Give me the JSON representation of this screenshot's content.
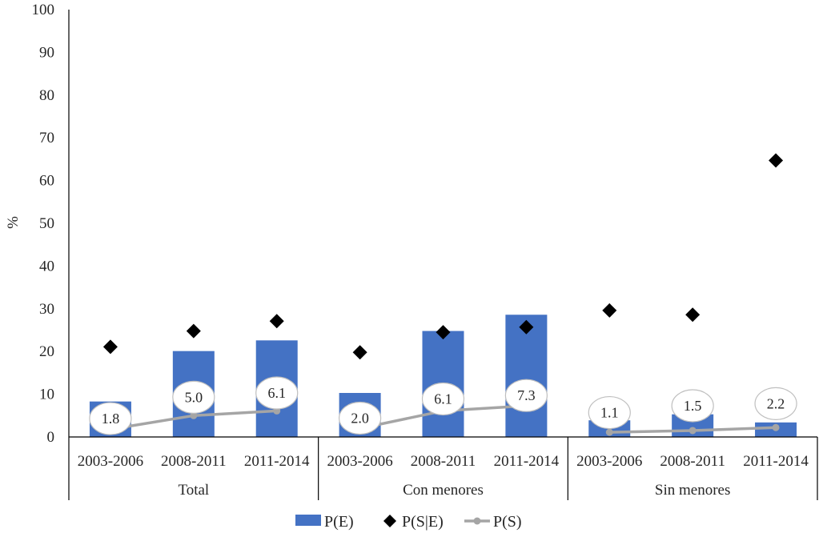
{
  "chart_data": {
    "type": "bar",
    "ylabel": "%",
    "ylim": [
      0,
      100
    ],
    "yticks": [
      0,
      10,
      20,
      30,
      40,
      50,
      60,
      70,
      80,
      90,
      100
    ],
    "groups": [
      {
        "name": "Total",
        "categories": [
          "2003-2006",
          "2008-2011",
          "2011-2014"
        ]
      },
      {
        "name": "Con menores",
        "categories": [
          "2003-2006",
          "2008-2011",
          "2011-2014"
        ]
      },
      {
        "name": "Sin menores",
        "categories": [
          "2003-2006",
          "2008-2011",
          "2011-2014"
        ]
      }
    ],
    "series": [
      {
        "name": "P(E)",
        "kind": "bar",
        "color": "#4472c4",
        "values": [
          8.3,
          20.1,
          22.6,
          10.3,
          24.8,
          28.6,
          3.9,
          5.3,
          3.4
        ]
      },
      {
        "name": "P(S|E)",
        "kind": "marker",
        "marker": "diamond",
        "color": "#000000",
        "values": [
          21.1,
          24.8,
          27.1,
          19.8,
          24.5,
          25.7,
          29.6,
          28.6,
          64.7
        ]
      },
      {
        "name": "P(S)",
        "kind": "line",
        "color": "#a5a5a5",
        "values": [
          1.8,
          5.0,
          6.1,
          2.0,
          6.1,
          7.3,
          1.1,
          1.5,
          2.2
        ],
        "labels": [
          "1.8",
          "5.0",
          "6.1",
          "2.0",
          "6.1",
          "7.3",
          "1.1",
          "1.5",
          "2.2"
        ],
        "label_offsets": [
          2.5,
          4.3,
          4.2,
          2.4,
          2.8,
          2.4,
          4.6,
          5.8,
          5.6
        ]
      }
    ],
    "legend_position": "bottom-center",
    "grid": false
  }
}
